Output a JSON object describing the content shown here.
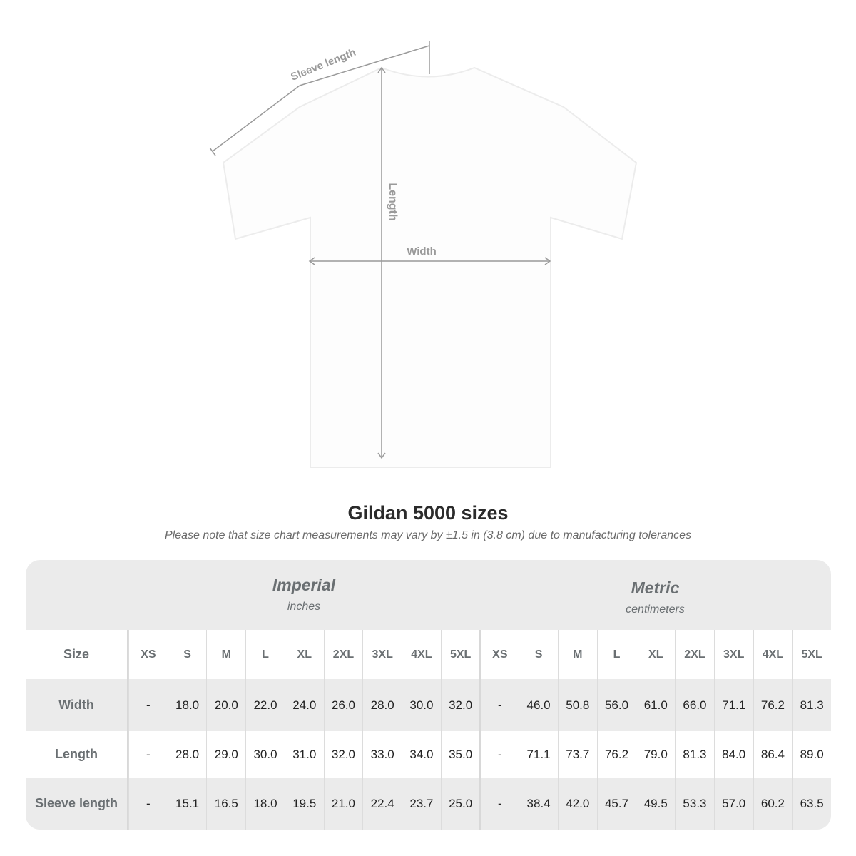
{
  "diagram": {
    "sleeve_label": "Sleeve length",
    "length_label": "Length",
    "width_label": "Width"
  },
  "title": "Gildan 5000 sizes",
  "note": "Please note that size chart measurements may vary by ±1.5 in (3.8 cm) due to manufacturing tolerances",
  "table": {
    "imperial": {
      "label": "Imperial",
      "unit": "inches"
    },
    "metric": {
      "label": "Metric",
      "unit": "centimeters"
    },
    "size_label": "Size",
    "sizes": [
      "XS",
      "S",
      "M",
      "L",
      "XL",
      "2XL",
      "3XL",
      "4XL",
      "5XL"
    ],
    "rows": [
      {
        "label": "Width",
        "imperial": [
          "-",
          "18.0",
          "20.0",
          "22.0",
          "24.0",
          "26.0",
          "28.0",
          "30.0",
          "32.0"
        ],
        "metric": [
          "-",
          "46.0",
          "50.8",
          "56.0",
          "61.0",
          "66.0",
          "71.1",
          "76.2",
          "81.3"
        ]
      },
      {
        "label": "Length",
        "imperial": [
          "-",
          "28.0",
          "29.0",
          "30.0",
          "31.0",
          "32.0",
          "33.0",
          "34.0",
          "35.0"
        ],
        "metric": [
          "-",
          "71.1",
          "73.7",
          "76.2",
          "79.0",
          "81.3",
          "84.0",
          "86.4",
          "89.0"
        ]
      },
      {
        "label": "Sleeve length",
        "imperial": [
          "-",
          "15.1",
          "16.5",
          "18.0",
          "19.5",
          "21.0",
          "22.4",
          "23.7",
          "25.0"
        ],
        "metric": [
          "-",
          "38.4",
          "42.0",
          "45.7",
          "49.5",
          "53.3",
          "57.0",
          "60.2",
          "63.5"
        ]
      }
    ]
  }
}
